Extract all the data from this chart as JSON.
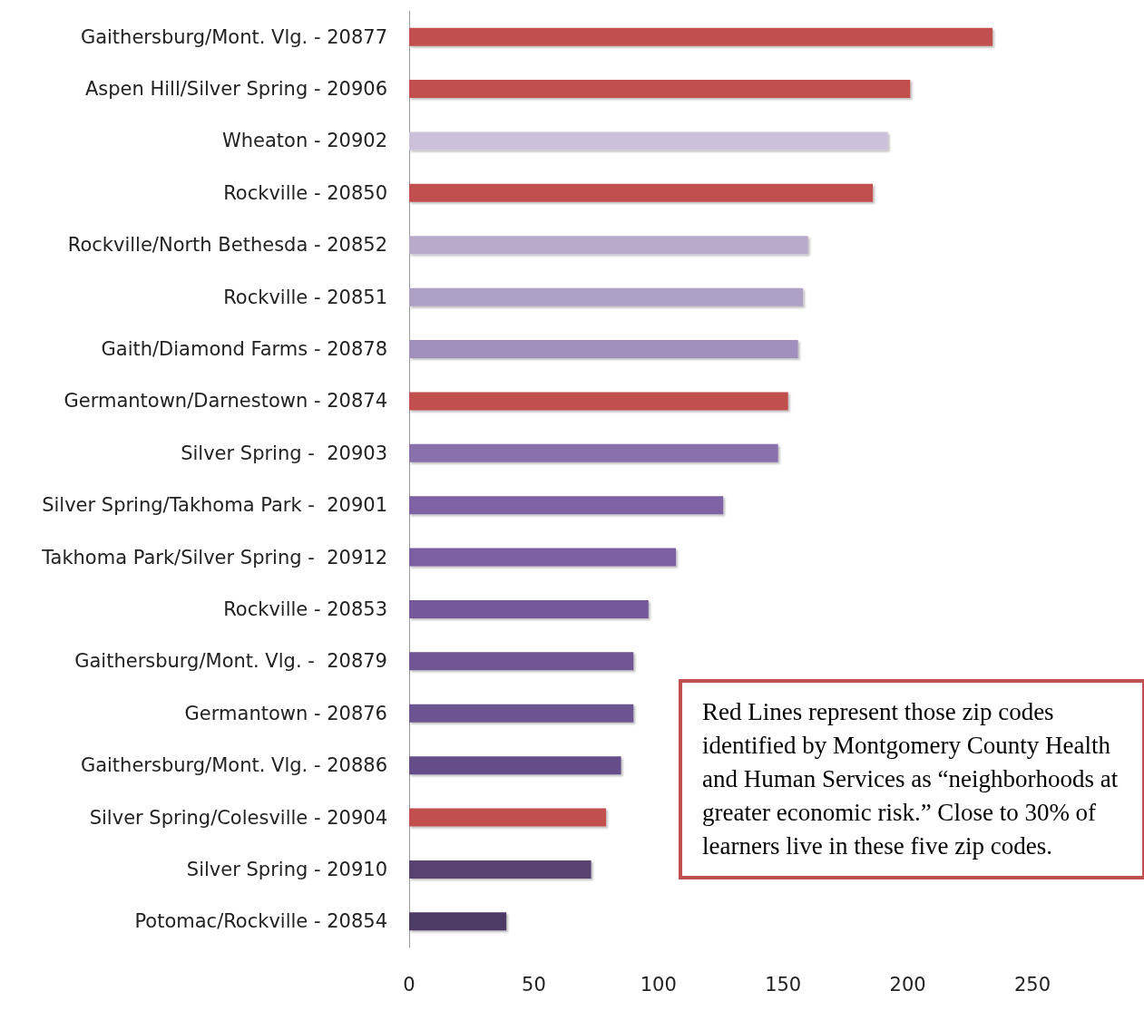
{
  "chart_data": {
    "type": "bar",
    "orientation": "horizontal",
    "categories": [
      "Gaithersburg/Mont. Vlg. - 20877",
      "Aspen Hill/Silver Spring - 20906",
      "Wheaton - 20902",
      "Rockville - 20850",
      "Rockville/North Bethesda - 20852",
      "Rockville - 20851",
      "Gaith/Diamond Farms - 20878",
      "Germantown/Darnestown - 20874",
      "Silver Spring -  20903",
      "Silver Spring/Takhoma Park -  20901",
      "Takhoma Park/Silver Spring -  20912",
      "Rockville - 20853",
      "Gaithersburg/Mont. Vlg. -  20879",
      "Germantown - 20876",
      "Gaithersburg/Mont. Vlg. - 20886",
      "Silver Spring/Colesville - 20904",
      "Silver Spring - 20910",
      "Potomac/Rockville - 20854"
    ],
    "values": [
      234,
      201,
      192,
      186,
      160,
      158,
      156,
      152,
      148,
      126,
      107,
      96,
      90,
      90,
      85,
      79,
      73,
      39
    ],
    "colors": [
      "#c0504d",
      "#c0504d",
      "#ccc1da",
      "#c0504d",
      "#b8abc9",
      "#ada0c5",
      "#a08fbd",
      "#c0504d",
      "#8a6fab",
      "#7f62a4",
      "#7b5ea0",
      "#75599a",
      "#715595",
      "#6c5291",
      "#654d89",
      "#c0504d",
      "#58426f",
      "#4e3a66"
    ],
    "xlim": [
      0,
      250
    ],
    "xticks": [
      0,
      50,
      100,
      150,
      200,
      250
    ],
    "grid": false,
    "annotations": [
      "Red Lines represent those zip codes identified by Montgomery County Health and Human Services as “neighborhoods at greater economic risk.” Close to 30% of learners live in these five zip codes."
    ]
  }
}
